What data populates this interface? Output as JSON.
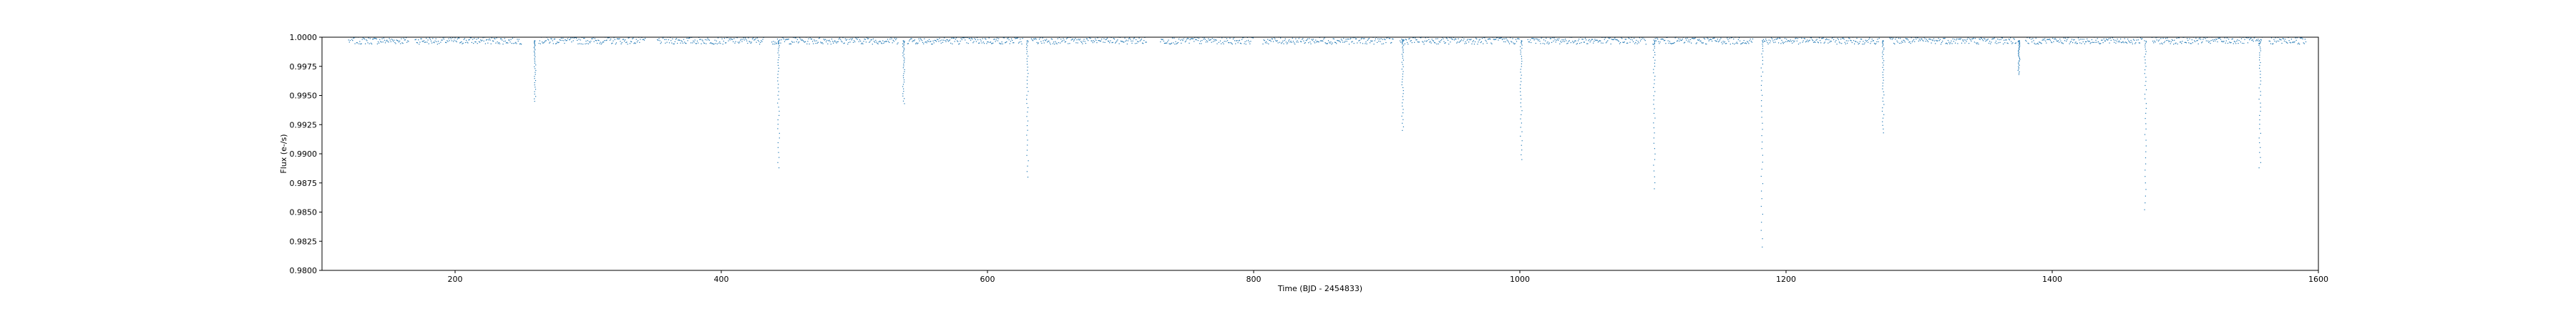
{
  "chart_data": {
    "type": "scatter",
    "xlabel": "Time (BJD - 2454833)",
    "ylabel": "Flux (e-/s)",
    "xlim": [
      100,
      1600
    ],
    "ylim": [
      0.98,
      1.0
    ],
    "xticks": [
      200,
      400,
      600,
      800,
      1000,
      1200,
      1400,
      1600
    ],
    "xtick_labels": [
      "200",
      "400",
      "600",
      "800",
      "1000",
      "1200",
      "1400",
      "1600"
    ],
    "yticks": [
      0.98,
      0.9825,
      0.985,
      0.9875,
      0.99,
      0.9925,
      0.995,
      0.9975,
      1.0
    ],
    "ytick_labels": [
      "0.9800",
      "0.9825",
      "0.9850",
      "0.9875",
      "0.9900",
      "0.9925",
      "0.9950",
      "0.9975",
      "1.0000"
    ],
    "grid": false,
    "marker_color": "#1f77b4",
    "baseline_flux": 0.9997,
    "observation_segments": [
      [
        120,
        165
      ],
      [
        170,
        250
      ],
      [
        263,
        343
      ],
      [
        352,
        432
      ],
      [
        438,
        533
      ],
      [
        540,
        627
      ],
      [
        633,
        720
      ],
      [
        730,
        800
      ],
      [
        807,
        905
      ],
      [
        910,
        1000
      ],
      [
        1006,
        1095
      ],
      [
        1100,
        1175
      ],
      [
        1183,
        1270
      ],
      [
        1278,
        1373
      ],
      [
        1380,
        1468
      ],
      [
        1475,
        1558
      ],
      [
        1563,
        1591
      ]
    ],
    "transits": [
      {
        "time": 260,
        "min_flux": 0.9945
      },
      {
        "time": 443,
        "min_flux": 0.9888
      },
      {
        "time": 537,
        "min_flux": 0.9943
      },
      {
        "time": 630,
        "min_flux": 0.988
      },
      {
        "time": 912,
        "min_flux": 0.992
      },
      {
        "time": 1001,
        "min_flux": 0.9895
      },
      {
        "time": 1101,
        "min_flux": 0.987
      },
      {
        "time": 1182,
        "min_flux": 0.982
      },
      {
        "time": 1273,
        "min_flux": 0.9918
      },
      {
        "time": 1375,
        "min_flux": 0.9968
      },
      {
        "time": 1470,
        "min_flux": 0.9852
      },
      {
        "time": 1556,
        "min_flux": 0.9888
      }
    ]
  }
}
